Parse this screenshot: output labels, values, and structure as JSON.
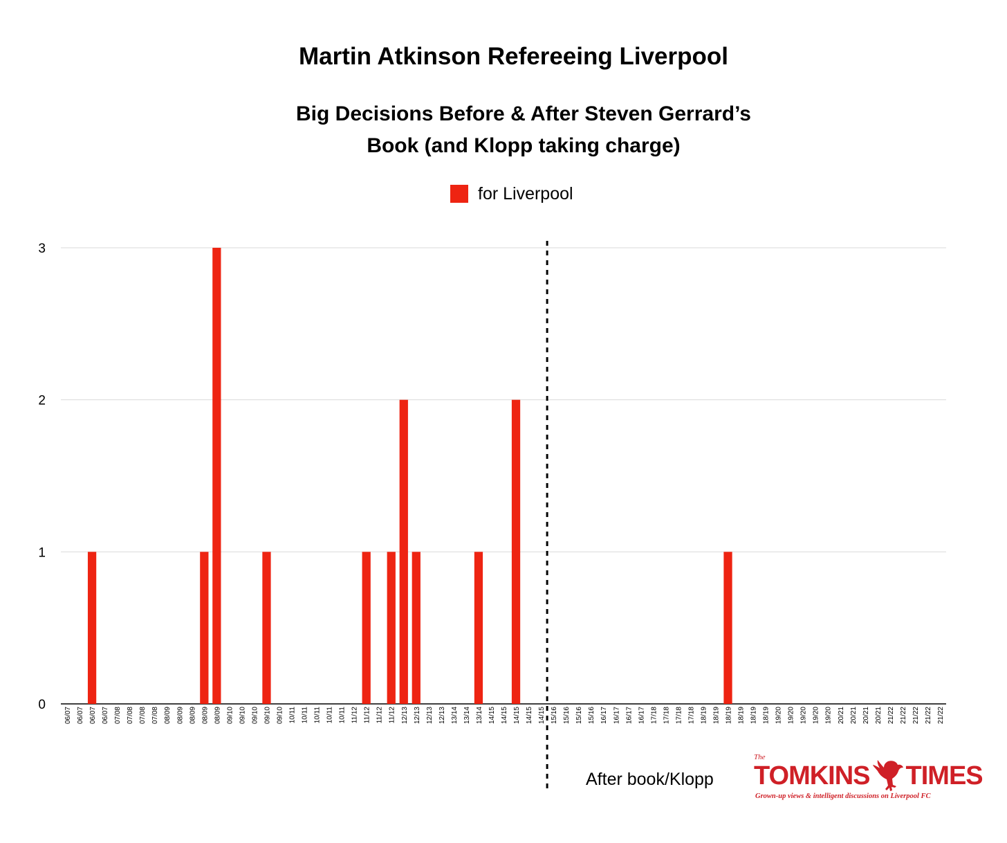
{
  "chart_data": {
    "type": "bar",
    "title": "Martin Atkinson Refereeing Liverpool",
    "subtitle_lines": [
      "Big Decisions Before & After Steven Gerrard’s",
      "Book (and Klopp taking charge)"
    ],
    "legend": {
      "label": "for Liverpool",
      "position": "top-center"
    },
    "series": [
      {
        "name": "for Liverpool",
        "color": "#ee2412",
        "values": [
          0,
          0,
          1,
          0,
          0,
          0,
          0,
          0,
          0,
          0,
          0,
          1,
          3,
          0,
          0,
          0,
          1,
          0,
          0,
          0,
          0,
          0,
          0,
          0,
          1,
          0,
          1,
          2,
          1,
          0,
          0,
          0,
          0,
          1,
          0,
          0,
          2,
          0,
          0,
          0,
          0,
          0,
          0,
          0,
          0,
          0,
          0,
          0,
          0,
          0,
          0,
          0,
          0,
          1,
          0,
          0,
          0,
          0,
          0,
          0,
          0,
          0,
          0,
          0,
          0,
          0,
          0,
          0,
          0,
          0,
          0
        ]
      }
    ],
    "categories": [
      "06/07",
      "06/07",
      "06/07",
      "06/07",
      "07/08",
      "07/08",
      "07/08",
      "07/08",
      "08/09",
      "08/09",
      "08/09",
      "08/09",
      "08/09",
      "09/10",
      "09/10",
      "09/10",
      "09/10",
      "09/10",
      "10/11",
      "10/11",
      "10/11",
      "10/11",
      "10/11",
      "11/12",
      "11/12",
      "11/12",
      "11/12",
      "12/13",
      "12/13",
      "12/13",
      "12/13",
      "13/14",
      "13/14",
      "13/14",
      "14/15",
      "14/15",
      "14/15",
      "14/15",
      "14/15",
      "15/16",
      "15/16",
      "15/16",
      "15/16",
      "16/17",
      "16/17",
      "16/17",
      "16/17",
      "17/18",
      "17/18",
      "17/18",
      "17/18",
      "18/19",
      "18/19",
      "18/19",
      "18/19",
      "18/19",
      "18/19",
      "19/20",
      "19/20",
      "19/20",
      "19/20",
      "19/20",
      "20/21",
      "20/21",
      "20/21",
      "20/21",
      "21/22",
      "21/22",
      "21/22",
      "21/22",
      "21/22"
    ],
    "ylim": [
      0,
      3
    ],
    "yticks": [
      0,
      1,
      2,
      3
    ],
    "grid": true,
    "vline": {
      "after_index": 38,
      "style": "dashed",
      "label": "After book/Klopp"
    },
    "gridline_color": "#d9d9d9"
  },
  "branding": {
    "the": "The",
    "left_word": "TOMKINS",
    "right_word": "TIMES",
    "tagline": "Grown-up views & intelligent discussions on Liverpool FC",
    "icon": "liverbird-icon",
    "color": "#cf2027"
  }
}
